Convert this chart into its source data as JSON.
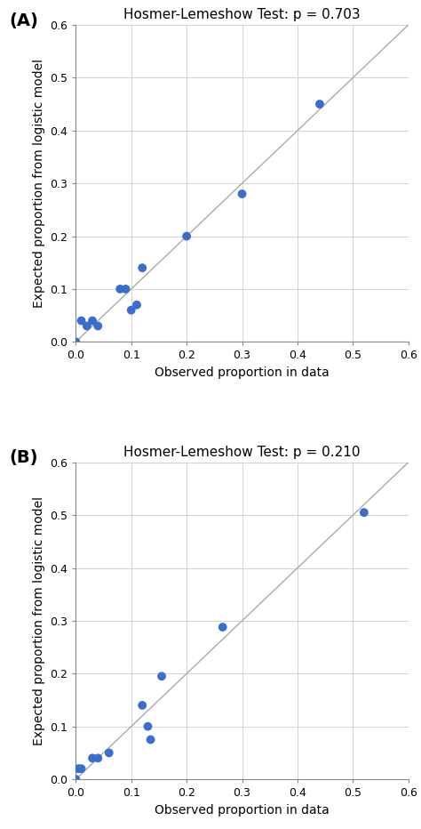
{
  "plot_A": {
    "title": "Hosmer-Lemeshow Test: p = 0.703",
    "label": "(A)",
    "x": [
      0.0,
      0.01,
      0.02,
      0.03,
      0.04,
      0.08,
      0.09,
      0.1,
      0.11,
      0.12,
      0.2,
      0.3,
      0.44
    ],
    "y": [
      0.0,
      0.04,
      0.03,
      0.04,
      0.03,
      0.1,
      0.1,
      0.06,
      0.07,
      0.14,
      0.2,
      0.28,
      0.45
    ]
  },
  "plot_B": {
    "title": "Hosmer-Lemeshow Test: p = 0.210",
    "label": "(B)",
    "x": [
      0.0,
      0.005,
      0.01,
      0.03,
      0.04,
      0.06,
      0.12,
      0.13,
      0.135,
      0.155,
      0.265,
      0.52
    ],
    "y": [
      0.0,
      0.02,
      0.02,
      0.04,
      0.04,
      0.05,
      0.14,
      0.1,
      0.075,
      0.195,
      0.288,
      0.505
    ]
  },
  "dot_color": "#3a6ecc",
  "dot_size": 50,
  "line_color": "#aaaaaa",
  "xlim": [
    0,
    0.6
  ],
  "ylim": [
    0,
    0.6
  ],
  "xticks": [
    0.0,
    0.1,
    0.2,
    0.3,
    0.4,
    0.5,
    0.6
  ],
  "yticks": [
    0.0,
    0.1,
    0.2,
    0.3,
    0.4,
    0.5,
    0.6
  ],
  "xlabel": "Observed proportion in data",
  "ylabel": "Expected proportion from logistic model",
  "grid_color": "#cccccc",
  "background_color": "#ffffff",
  "label_fontsize": 14,
  "title_fontsize": 11,
  "axis_fontsize": 10,
  "tick_fontsize": 9
}
